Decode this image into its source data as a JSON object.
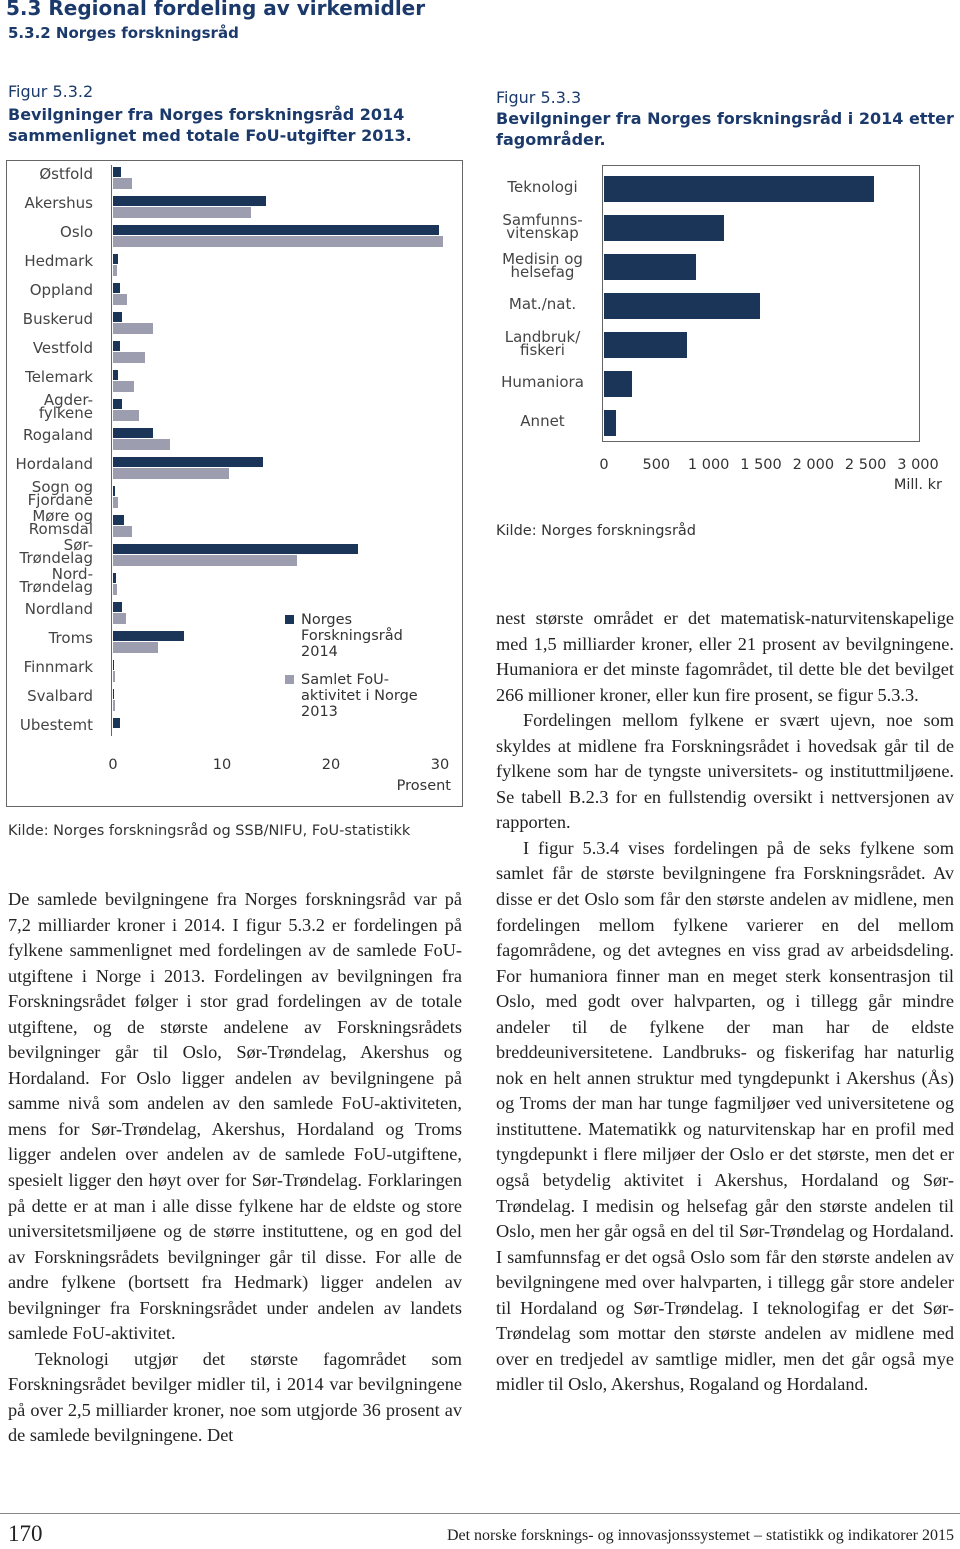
{
  "header": {
    "section": "5.3 Regional fordeling av virkemidler",
    "subsection": "5.3.2 Norges forskningsråd"
  },
  "chart_data": [
    {
      "type": "bar",
      "orientation": "horizontal",
      "figure_number": "Figur 5.3.2",
      "title": "Bevilgninger fra Norges forskningsråd 2014 sammenlignet med totale FoU-utgifter 2013.",
      "categories": [
        "Østfold",
        "Akershus",
        "Oslo",
        "Hedmark",
        "Oppland",
        "Buskerud",
        "Vestfold",
        "Telemark",
        "Agder-\nfylkene",
        "Rogaland",
        "Hordaland",
        "Sogn og\nFjordane",
        "Møre og\nRomsdal",
        "Sør-\nTrøndelag",
        "Nord-\nTrøndelag",
        "Nordland",
        "Troms",
        "Finnmark",
        "Svalbard",
        "Ubestemt"
      ],
      "series": [
        {
          "name": "Norges Forskningsråd 2014",
          "color": "#1b3558",
          "values": [
            0.7,
            14.0,
            29.9,
            0.5,
            0.6,
            0.8,
            0.6,
            0.5,
            0.8,
            3.7,
            13.8,
            0.2,
            1.0,
            22.5,
            0.3,
            0.8,
            6.5,
            0.1,
            0.1,
            0.6
          ]
        },
        {
          "name": "Samlet FoU-aktivitet i Norge 2013",
          "color": "#9d9db0",
          "values": [
            1.7,
            12.7,
            30.3,
            0.4,
            1.3,
            3.7,
            2.9,
            1.9,
            2.4,
            5.2,
            10.6,
            0.5,
            1.7,
            16.9,
            0.4,
            1.2,
            4.1,
            0.2,
            0.2,
            0
          ]
        }
      ],
      "xlim": [
        0,
        30
      ],
      "xticks": [
        0,
        10,
        20,
        30
      ],
      "xlabel": "Prosent",
      "source": "Kilde: Norges forskningsråd og SSB/NIFU, FoU-statistikk"
    },
    {
      "type": "bar",
      "orientation": "horizontal",
      "figure_number": "Figur 5.3.3",
      "title": "Bevilgninger fra Norges forskningsråd i 2014 etter fagområder.",
      "categories": [
        "Teknologi",
        "Samfunns-\nvitenskap",
        "Medisin og\nhelsefag",
        "Mat./nat.",
        "Landbruk/\nfiskeri",
        "Humaniora",
        "Annet"
      ],
      "color": "#1b3558",
      "values": [
        2580,
        1150,
        880,
        1490,
        790,
        266,
        115
      ],
      "xlim": [
        0,
        3000
      ],
      "xticks": [
        0,
        500,
        {
          "value": 1000,
          "label": "1 000"
        },
        {
          "value": 1500,
          "label": "1 500"
        },
        {
          "value": 2000,
          "label": "2 000"
        },
        {
          "value": 2500,
          "label": "2 500"
        },
        {
          "value": 3000,
          "label": "3 000"
        }
      ],
      "xlabel": "Mill. kr",
      "source": "Kilde: Norges forskningsråd"
    }
  ],
  "body": {
    "left": [
      "De samlede bevilgningene fra Norges forskningsråd var på 7,2 milliarder kroner i 2014. I figur 5.3.2 er fordelingen på fylkene sammenlignet med fordelingen av de samlede FoU-utgiftene i Norge i 2013. Fordelingen av bevilgningen fra Forskningsrådet følger i stor grad fordelingen av de totale utgiftene, og de største andelene av Forskningsrådets bevilgninger går til Oslo, Sør-Trøndelag, Akershus og Hordaland. For Oslo ligger andelen av bevilgningene på samme nivå som andelen av den samlede FoU-aktiviteten, mens for Sør-Trøndelag, Akershus, Hordaland og Troms ligger andelen over andelen av de samlede FoU-utgiftene, spesielt ligger den høyt over for Sør-Trøndelag. Forklaringen på dette er at man i alle disse fylkene har de eldste og store universitetsmiljøene og de større instituttene, og en god del av Forskningsrådets bevilgninger går til disse. For alle de andre fylkene (bortsett fra Hedmark) ligger andelen av bevilgninger fra Forskningsrådet under andelen av landets samlede FoU-aktivitet.",
      "Teknologi utgjør det største fagområdet som Forskningsrådet bevilger midler til, i 2014 var bevilgningene på over 2,5 milliarder kroner, noe som utgjorde 36 prosent av de samlede bevilgningene. Det"
    ],
    "right": [
      "nest største området er det matematisk-naturvitenskapelige med 1,5 milliarder kroner, eller 21 prosent av bevilgningene. Humaniora er det minste fagområdet, til dette ble det bevilget 266 millioner kroner, eller kun fire prosent, se figur 5.3.3.",
      "Fordelingen mellom fylkene er svært ujevn, noe som skyldes at midlene fra Forskningsrådet i hovedsak går til de fylkene som har de tyngste universitets- og instituttmiljøene. Se tabell B.2.3 for en fullstendig oversikt i nettversjonen av rapporten.",
      "I figur 5.3.4 vises fordelingen på de seks fylkene som samlet får de største bevilgningene fra Forskningsrådet. Av disse er det Oslo som får den største andelen av midlene, men fordelingen mellom fylkene varierer en del mellom fagområdene, og det avtegnes en viss grad av arbeidsdeling. For humaniora finner man en meget sterk konsentrasjon til Oslo, med godt over halvparten, og i tillegg går mindre andeler til de fylkene der man har de eldste breddeuniversitetene. Landbruks- og fiskerifag har naturlig nok en helt annen struktur med tyngdepunkt i Akershus (Ås) og Troms der man har tunge fagmiljøer ved universitetene og instituttene. Matematikk og naturvitenskap har en profil med tyngdepunkt i flere miljøer der Oslo er det største, men det er også betydelig aktivitet i Akershus, Hordaland og Sør-Trøndelag. I medisin og helsefag går den største andelen til Oslo, men her går også en del til Sør-Trøndelag og Hordaland. I samfunnsfag er det også Oslo som får den største andelen av bevilgningene med over halvparten, i tillegg går store andeler til Hordaland og Sør-Trøndelag. I teknologifag er det Sør-Trøndelag som mottar den største andelen av midlene med over en tredjedel av samtlige midler, men det går også mye midler til Oslo, Akershus, Rogaland og Hordaland."
    ]
  },
  "footer": {
    "page": "170",
    "publication": "Det norske forsknings- og innovasjonssystemet – statistikk og indikatorer 2015"
  }
}
